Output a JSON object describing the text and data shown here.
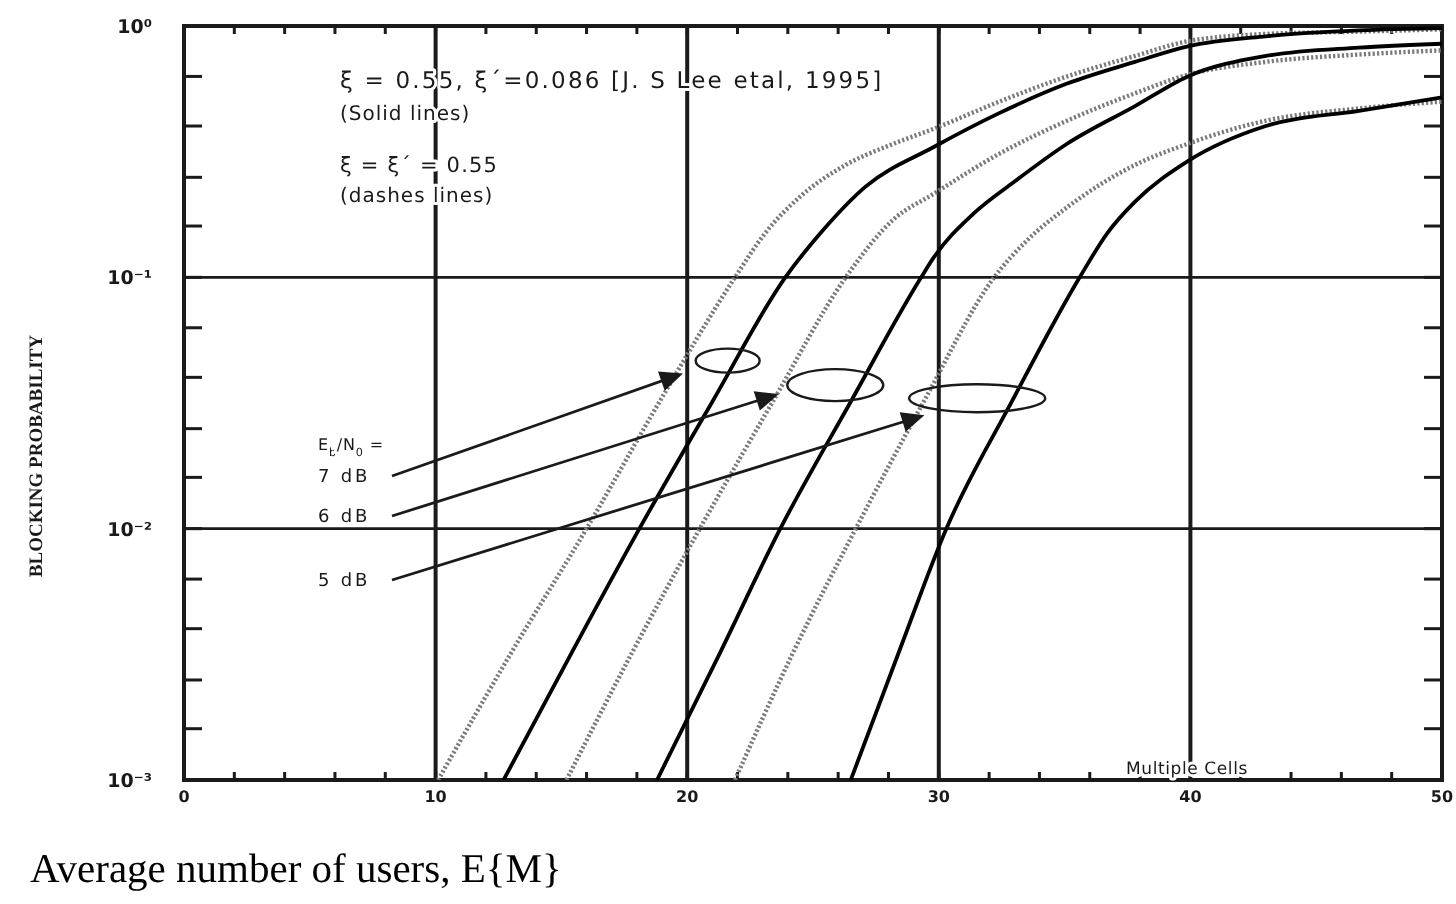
{
  "chart_data": {
    "type": "line",
    "xlabel": "Average number of users, E{M}",
    "ylabel": "BLOCKING PROBABILITY",
    "xlim": [
      0,
      50
    ],
    "ylim": [
      0.001,
      1
    ],
    "log": "y",
    "grid": true,
    "xticks": [
      0,
      {
        "value": 2,
        "label": null
      },
      {
        "value": 4,
        "label": null
      },
      {
        "value": 6,
        "label": null
      },
      {
        "value": 8,
        "label": null
      },
      10,
      {
        "value": 12,
        "label": null
      },
      {
        "value": 14,
        "label": null
      },
      {
        "value": 16,
        "label": null
      },
      {
        "value": 18,
        "label": null
      },
      20,
      {
        "value": 22,
        "label": null
      },
      {
        "value": 24,
        "label": null
      },
      {
        "value": 26,
        "label": null
      },
      {
        "value": 28,
        "label": null
      },
      30,
      {
        "value": 32,
        "label": null
      },
      {
        "value": 34,
        "label": null
      },
      {
        "value": 36,
        "label": null
      },
      {
        "value": 38,
        "label": null
      },
      40,
      {
        "value": 42,
        "label": null
      },
      {
        "value": 44,
        "label": null
      },
      {
        "value": 46,
        "label": null
      },
      {
        "value": 48,
        "label": null
      },
      50
    ],
    "yticks": [
      {
        "value": 1,
        "label": "10⁰"
      },
      {
        "value": 0.63,
        "label": null
      },
      {
        "value": 0.4,
        "label": null
      },
      {
        "value": 0.25,
        "label": null
      },
      {
        "value": 0.16,
        "label": null
      },
      {
        "value": 0.1,
        "label": "10⁻¹"
      },
      {
        "value": 0.063,
        "label": null
      },
      {
        "value": 0.04,
        "label": null
      },
      {
        "value": 0.025,
        "label": null
      },
      {
        "value": 0.016,
        "label": null
      },
      {
        "value": 0.01,
        "label": "10⁻²"
      },
      {
        "value": 0.0063,
        "label": null
      },
      {
        "value": 0.004,
        "label": null
      },
      {
        "value": 0.0025,
        "label": null
      },
      {
        "value": 0.0016,
        "label": null
      },
      {
        "value": 0.001,
        "label": "10⁻³"
      }
    ],
    "series": [
      {
        "color": "#7a7a7a",
        "line_style": "dotted",
        "x": [
          10.1,
          13.0,
          16.0,
          18.9,
          21.9,
          23.1,
          24.5,
          26.3,
          28.2,
          29.8,
          32.4,
          35.1,
          37.8,
          39.9,
          43.0,
          46.7,
          50
        ],
        "values": [
          0.001,
          0.0032,
          0.01,
          0.032,
          0.1,
          0.15,
          0.21,
          0.28,
          0.34,
          0.39,
          0.5,
          0.63,
          0.76,
          0.87,
          0.93,
          0.95,
          0.97
        ]
      },
      {
        "color": "#000000",
        "line_style": "solid",
        "x": [
          12.7,
          15.4,
          18.1,
          21.0,
          23.9,
          25.3,
          27.1,
          29.8,
          32.4,
          35.1,
          37.8,
          39.9,
          43.0,
          46.7,
          50
        ],
        "values": [
          0.001,
          0.0032,
          0.01,
          0.032,
          0.1,
          0.15,
          0.23,
          0.33,
          0.45,
          0.59,
          0.72,
          0.83,
          0.91,
          0.96,
          0.98
        ]
      },
      {
        "color": "#7a7a7a",
        "line_style": "dotted",
        "x": [
          15.2,
          17.8,
          20.5,
          23.4,
          26.3,
          28.2,
          29.8,
          32.4,
          35.1,
          37.8,
          39.9,
          43.0,
          46.7,
          50
        ],
        "values": [
          0.001,
          0.0032,
          0.01,
          0.032,
          0.1,
          0.17,
          0.215,
          0.31,
          0.42,
          0.54,
          0.64,
          0.72,
          0.77,
          0.8
        ]
      },
      {
        "color": "#000000",
        "line_style": "solid",
        "x": [
          18.8,
          21.3,
          23.7,
          26.5,
          29.3,
          29.8,
          31.4,
          33.0,
          35.1,
          37.8,
          39.9,
          43.0,
          46.7,
          50
        ],
        "values": [
          0.001,
          0.0032,
          0.01,
          0.032,
          0.1,
          0.12,
          0.18,
          0.24,
          0.34,
          0.48,
          0.63,
          0.76,
          0.82,
          0.85
        ]
      },
      {
        "color": "#7a7a7a",
        "line_style": "dotted",
        "x": [
          21.9,
          24.2,
          26.7,
          29.4,
          32.2,
          33.5,
          35.1,
          37.8,
          39.9,
          43.0,
          46.7,
          50
        ],
        "values": [
          0.001,
          0.0032,
          0.01,
          0.032,
          0.1,
          0.14,
          0.19,
          0.28,
          0.34,
          0.42,
          0.47,
          0.5
        ]
      },
      {
        "color": "#000000",
        "line_style": "solid",
        "x": [
          26.5,
          28.4,
          30.3,
          32.9,
          35.6,
          36.7,
          37.8,
          39.9,
          43.0,
          46.7,
          50
        ],
        "values": [
          0.001,
          0.0032,
          0.01,
          0.032,
          0.1,
          0.15,
          0.2,
          0.29,
          0.4,
          0.46,
          0.52
        ]
      }
    ],
    "annotations": [
      "ξ = 0.55, ξ´=0.086 [J. S Lee etal, 1995]",
      "(Solid lines)",
      "ξ = ξ´ = 0.55",
      "(dashes lines)",
      "E$_{b}$/N$_{0}$ =",
      {
        "text": "7 dB",
        "x": 19.7,
        "y": 0.041
      },
      {
        "text": "6 dB",
        "x": 23.5,
        "y": 0.034
      },
      {
        "text": "5 dB",
        "x": 29.3,
        "y": 0.028
      },
      "Multiple Cells"
    ]
  }
}
